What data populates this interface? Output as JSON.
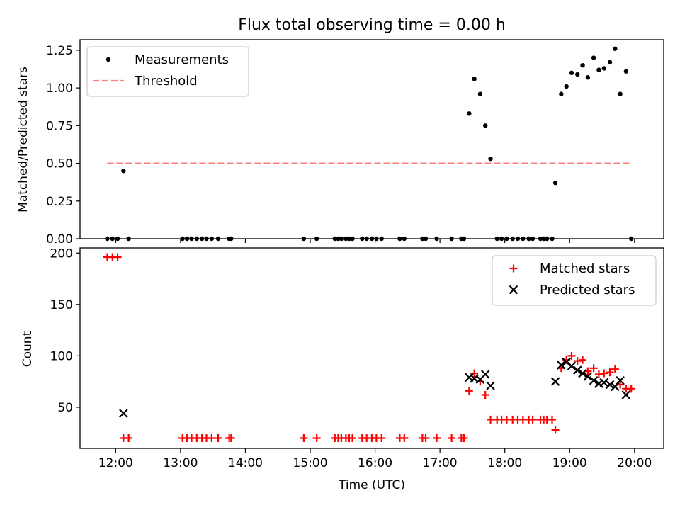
{
  "chart_data": [
    {
      "type": "scatter",
      "title": "Flux total observing time = 0.00 h",
      "xlabel": "",
      "ylabel": "Matched/Predicted stars",
      "xlim": [
        11.45,
        20.45
      ],
      "ylim": [
        0,
        1.32
      ],
      "yticks": [
        0.0,
        0.25,
        0.5,
        0.75,
        1.0,
        1.25
      ],
      "ytick_labels": [
        "0.00",
        "0.25",
        "0.50",
        "0.75",
        "1.00",
        "1.25"
      ],
      "legend": {
        "position": "top-left",
        "entries": [
          "Measurements",
          "Threshold"
        ]
      },
      "series": [
        {
          "name": "Measurements",
          "marker": "dot",
          "color": "#000000",
          "x": [
            11.87,
            11.95,
            12.03,
            12.12,
            12.2,
            13.03,
            13.1,
            13.17,
            13.25,
            13.33,
            13.4,
            13.48,
            13.58,
            13.75,
            13.78,
            14.9,
            15.1,
            15.38,
            15.43,
            15.48,
            15.55,
            15.6,
            15.65,
            15.8,
            15.87,
            15.95,
            16.02,
            16.1,
            16.38,
            16.45,
            16.73,
            16.78,
            16.95,
            17.18,
            17.33,
            17.37,
            17.45,
            17.53,
            17.62,
            17.7,
            17.78,
            17.88,
            17.95,
            18.03,
            18.12,
            18.2,
            18.28,
            18.37,
            18.43,
            18.55,
            18.6,
            18.65,
            18.73,
            18.78,
            18.87,
            18.95,
            19.03,
            19.12,
            19.2,
            19.28,
            19.37,
            19.45,
            19.53,
            19.62,
            19.7,
            19.78,
            19.87,
            19.95
          ],
          "y": [
            0,
            0,
            0,
            0.45,
            0,
            0,
            0,
            0,
            0,
            0,
            0,
            0,
            0,
            0,
            0,
            0,
            0,
            0,
            0,
            0,
            0,
            0,
            0,
            0,
            0,
            0,
            0,
            0,
            0,
            0,
            0,
            0,
            0,
            0,
            0,
            0,
            0.83,
            1.06,
            0.96,
            0.75,
            0.53,
            0,
            0,
            0,
            0,
            0,
            0,
            0,
            0,
            0,
            0,
            0,
            0,
            0.37,
            0.96,
            1.01,
            1.1,
            1.09,
            1.15,
            1.07,
            1.2,
            1.12,
            1.13,
            1.17,
            1.26,
            0.96,
            1.11,
            0
          ]
        },
        {
          "name": "Threshold",
          "style": "dashed",
          "color": "#ff7f7f",
          "x": [
            11.87,
            19.95
          ],
          "y": [
            0.5,
            0.5
          ]
        }
      ]
    },
    {
      "type": "scatter",
      "title": "",
      "xlabel": "Time (UTC)",
      "ylabel": "Count",
      "xlim": [
        11.45,
        20.45
      ],
      "ylim": [
        10,
        205
      ],
      "yticks": [
        50,
        100,
        150,
        200
      ],
      "ytick_labels": [
        "50",
        "100",
        "150",
        "200"
      ],
      "xticks": [
        12,
        13,
        14,
        15,
        16,
        17,
        18,
        19,
        20
      ],
      "xtick_labels": [
        "12:00",
        "13:00",
        "14:00",
        "15:00",
        "16:00",
        "17:00",
        "18:00",
        "19:00",
        "20:00"
      ],
      "legend": {
        "position": "top-right",
        "entries": [
          "Matched stars",
          "Predicted stars"
        ]
      },
      "series": [
        {
          "name": "Matched stars",
          "marker": "plus",
          "color": "#ff0000",
          "x": [
            11.87,
            11.95,
            12.03,
            12.12,
            12.2,
            13.03,
            13.1,
            13.17,
            13.25,
            13.33,
            13.4,
            13.48,
            13.58,
            13.75,
            13.78,
            14.9,
            15.1,
            15.38,
            15.43,
            15.48,
            15.55,
            15.6,
            15.65,
            15.8,
            15.87,
            15.95,
            16.02,
            16.1,
            16.38,
            16.45,
            16.73,
            16.78,
            16.95,
            17.18,
            17.33,
            17.37,
            17.45,
            17.53,
            17.62,
            17.7,
            17.78,
            17.88,
            17.95,
            18.03,
            18.12,
            18.2,
            18.28,
            18.37,
            18.43,
            18.55,
            18.6,
            18.65,
            18.73,
            18.78,
            18.87,
            18.95,
            19.03,
            19.12,
            19.2,
            19.28,
            19.37,
            19.45,
            19.53,
            19.62,
            19.7,
            19.78,
            19.87,
            19.95
          ],
          "y": [
            196,
            196,
            196,
            20,
            20,
            20,
            20,
            20,
            20,
            20,
            20,
            20,
            20,
            20,
            20,
            20,
            20,
            20,
            20,
            20,
            20,
            20,
            20,
            20,
            20,
            20,
            20,
            20,
            20,
            20,
            20,
            20,
            20,
            20,
            20,
            20,
            66,
            83,
            75,
            62,
            38,
            38,
            38,
            38,
            38,
            38,
            38,
            38,
            38,
            38,
            38,
            38,
            38,
            28,
            88,
            96,
            100,
            95,
            96,
            85,
            88,
            82,
            83,
            84,
            87,
            72,
            68,
            68
          ]
        },
        {
          "name": "Predicted stars",
          "marker": "x",
          "color": "#000000",
          "x": [
            12.12,
            17.45,
            17.53,
            17.62,
            17.7,
            17.78,
            18.78,
            18.87,
            18.95,
            19.03,
            19.12,
            19.2,
            19.28,
            19.37,
            19.45,
            19.53,
            19.62,
            19.7,
            19.78,
            19.87
          ],
          "y": [
            44,
            79,
            78,
            77,
            82,
            71,
            75,
            91,
            94,
            90,
            86,
            83,
            80,
            76,
            73,
            74,
            72,
            70,
            76,
            62
          ]
        }
      ]
    }
  ]
}
